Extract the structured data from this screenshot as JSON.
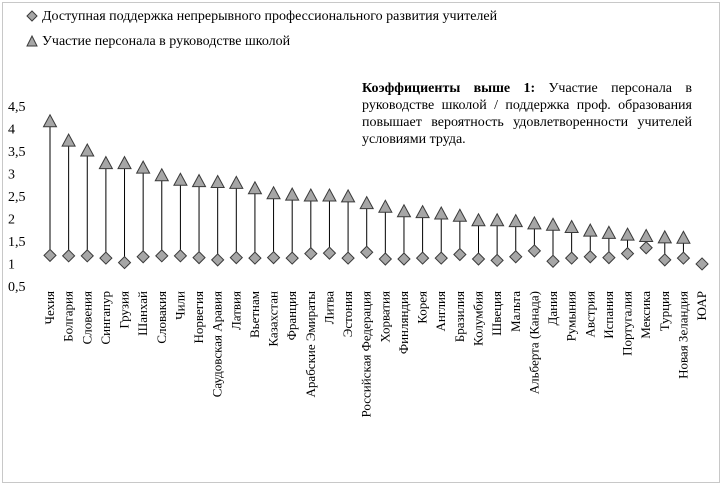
{
  "chart_data": {
    "type": "scatter",
    "series": [
      {
        "name": "Доступная поддержка непрерывного профессионального развития учителей",
        "marker": "diamond",
        "values": [
          1.18,
          1.17,
          1.17,
          1.12,
          1.02,
          1.15,
          1.17,
          1.17,
          1.13,
          1.08,
          1.13,
          1.12,
          1.13,
          1.12,
          1.22,
          1.23,
          1.12,
          1.25,
          1.1,
          1.1,
          1.12,
          1.12,
          1.2,
          1.1,
          1.07,
          1.15,
          1.28,
          1.05,
          1.12,
          1.15,
          1.13,
          1.22,
          1.35,
          1.08,
          1.12,
          0.99
        ]
      },
      {
        "name": "Участие персонала в руководстве школой",
        "marker": "triangle",
        "values": [
          4.15,
          3.72,
          3.5,
          3.22,
          3.22,
          3.12,
          2.95,
          2.85,
          2.82,
          2.8,
          2.78,
          2.66,
          2.55,
          2.52,
          2.5,
          2.5,
          2.48,
          2.33,
          2.25,
          2.15,
          2.13,
          2.1,
          2.05,
          1.95,
          1.95,
          1.93,
          1.88,
          1.85,
          1.8,
          1.72,
          1.67,
          1.63,
          1.6,
          1.57,
          1.56,
          null
        ]
      }
    ],
    "categories": [
      "Чехия",
      "Болгария",
      "Словения",
      "Сингапур",
      "Грузия",
      "Шанхай",
      "Словакия",
      "Чили",
      "Норвегия",
      "Саудовская Аравия",
      "Латвия",
      "Вьетнам",
      "Казахстан",
      "Франция",
      "Арабские Эмираты",
      "Литва",
      "Эстония",
      "Российская Федерация",
      "Хорватия",
      "Финляндия",
      "Корея",
      "Англия",
      "Бразилия",
      "Колумбия",
      "Швеция",
      "Мальта",
      "Альберта (Канада)",
      "Дания",
      "Румыния",
      "Австрия",
      "Испания",
      "Португалия",
      "Мексика",
      "Турция",
      "Новая Зеландия",
      "ЮАР"
    ],
    "yticks": [
      "0,5",
      "1",
      "1,5",
      "2",
      "2,5",
      "3",
      "3,5",
      "4",
      "4,5"
    ],
    "ylim": [
      0.5,
      4.5
    ],
    "colors": {
      "marker_fill": "#a6a6a6",
      "marker_stroke": "#3a3a3a",
      "line": "#000000"
    }
  },
  "annotation": {
    "bold": "Коэффициенты выше 1:",
    "text": " Участие персонала в руководстве школой / поддержка проф. образования повышает вероятность удовлетворенности учителей условиями труда."
  }
}
